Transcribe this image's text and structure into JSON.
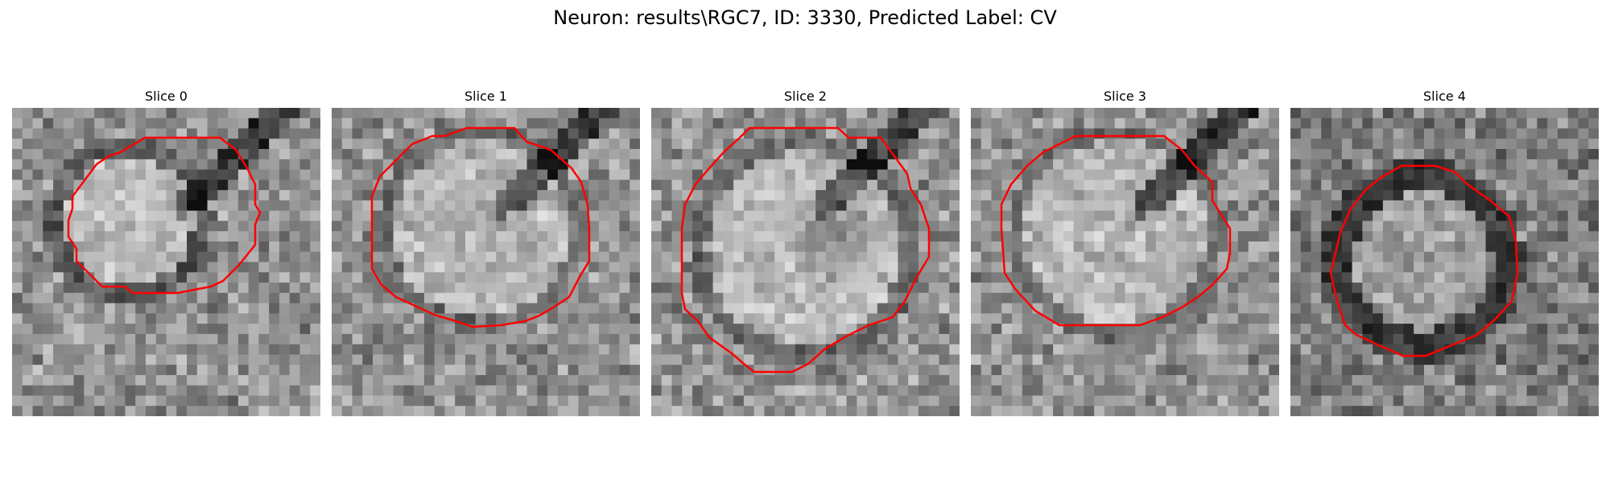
{
  "title": "Neuron: results\\RGC7, ID: 3330, Predicted Label: CV",
  "outline_color": "#ff0000",
  "image_style": "grayscale-noisy-microscopy",
  "slices": [
    {
      "label": "Slice 0"
    },
    {
      "label": "Slice 1"
    },
    {
      "label": "Slice 2"
    },
    {
      "label": "Slice 3"
    },
    {
      "label": "Slice 4"
    }
  ]
}
